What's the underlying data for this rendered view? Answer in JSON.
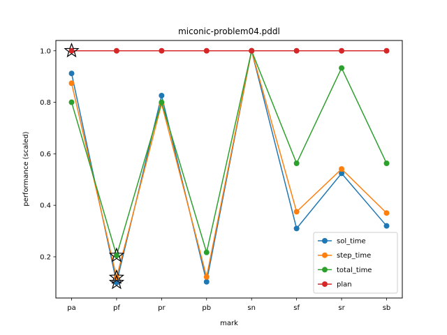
{
  "chart_data": {
    "type": "line",
    "title": "miconic-problem04.pddl",
    "xlabel": "mark",
    "ylabel": "performance (scaled)",
    "categories": [
      "pa",
      "pf",
      "pr",
      "pb",
      "sn",
      "sf",
      "sr",
      "sb"
    ],
    "ylim": [
      0.04,
      1.04
    ],
    "yticks": [
      0.2,
      0.4,
      0.6,
      0.8,
      1.0
    ],
    "ytick_labels": [
      "0.2",
      "0.4",
      "0.6",
      "0.8",
      "1.0"
    ],
    "legend_position": "lower-right",
    "grid": false,
    "series": [
      {
        "name": "sol_time",
        "color": "#1f77b4",
        "values": [
          0.912,
          0.1,
          0.826,
          0.103,
          1.0,
          0.31,
          0.524,
          0.32
        ]
      },
      {
        "name": "step_time",
        "color": "#ff7f0e",
        "values": [
          0.874,
          0.12,
          0.795,
          0.122,
          1.0,
          0.375,
          0.541,
          0.37
        ]
      },
      {
        "name": "total_time",
        "color": "#2ca02c",
        "values": [
          0.8,
          0.205,
          0.8,
          0.217,
          1.0,
          0.563,
          0.933,
          0.563
        ]
      },
      {
        "name": "plan",
        "color": "#d62728",
        "values": [
          1.0,
          1.0,
          1.0,
          1.0,
          1.0,
          1.0,
          1.0,
          1.0
        ]
      }
    ],
    "star_markers": [
      {
        "category": "pa",
        "value": 1.0
      },
      {
        "category": "pf",
        "value": 0.205
      },
      {
        "category": "pf",
        "value": 0.12
      },
      {
        "category": "pf",
        "value": 0.1
      }
    ]
  }
}
